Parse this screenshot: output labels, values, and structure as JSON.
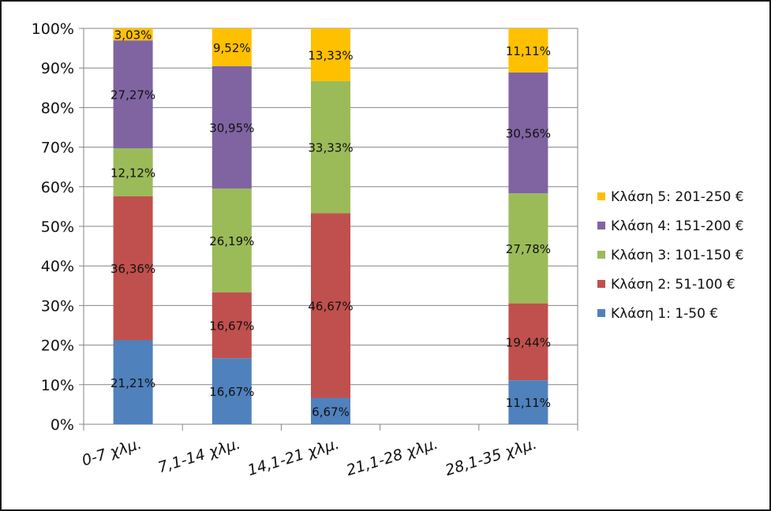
{
  "chart_data": {
    "type": "bar",
    "stacked": true,
    "percent_stacked": true,
    "categories": [
      "0-7 χλμ.",
      "7,1-14 χλμ.",
      "14,1-21 χλμ.",
      "21,1-28 χλμ.",
      "28,1-35 χλμ."
    ],
    "series": [
      {
        "name": "Κλάση 1:  1-50 €",
        "color": "#4f81bd",
        "values": [
          21.21,
          16.67,
          6.67,
          0,
          11.11
        ],
        "labels": [
          "21,21%",
          "16,67%",
          "6,67%",
          "",
          "11,11%"
        ]
      },
      {
        "name": "Κλάση 2:  51-100 €",
        "color": "#c0504d",
        "values": [
          36.36,
          16.67,
          46.67,
          0,
          19.44
        ],
        "labels": [
          "36,36%",
          "16,67%",
          "46,67%",
          "",
          "19,44%"
        ]
      },
      {
        "name": "Κλάση 3:  101-150 €",
        "color": "#9bbb59",
        "values": [
          12.12,
          26.19,
          33.33,
          0,
          27.78
        ],
        "labels": [
          "12,12%",
          "26,19%",
          "33,33%",
          "",
          "27,78%"
        ]
      },
      {
        "name": "Κλάση 4:  151-200 €",
        "color": "#8064a2",
        "values": [
          27.27,
          30.95,
          0,
          0,
          30.56
        ],
        "labels": [
          "27,27%",
          "30,95%",
          "",
          "",
          "30,56%"
        ]
      },
      {
        "name": "Κλάση 5:  201-250 €",
        "color": "#ffc000",
        "values": [
          3.03,
          9.52,
          13.33,
          0,
          11.11
        ],
        "labels": [
          "3,03%",
          "9,52%",
          "13,33%",
          "",
          "11,11%"
        ]
      }
    ],
    "y_ticks": [
      "0%",
      "10%",
      "20%",
      "30%",
      "40%",
      "50%",
      "60%",
      "70%",
      "80%",
      "90%",
      "100%"
    ],
    "ylim": [
      0,
      100
    ],
    "grid": true,
    "legend_position": "right",
    "legend_order": "reverse"
  }
}
